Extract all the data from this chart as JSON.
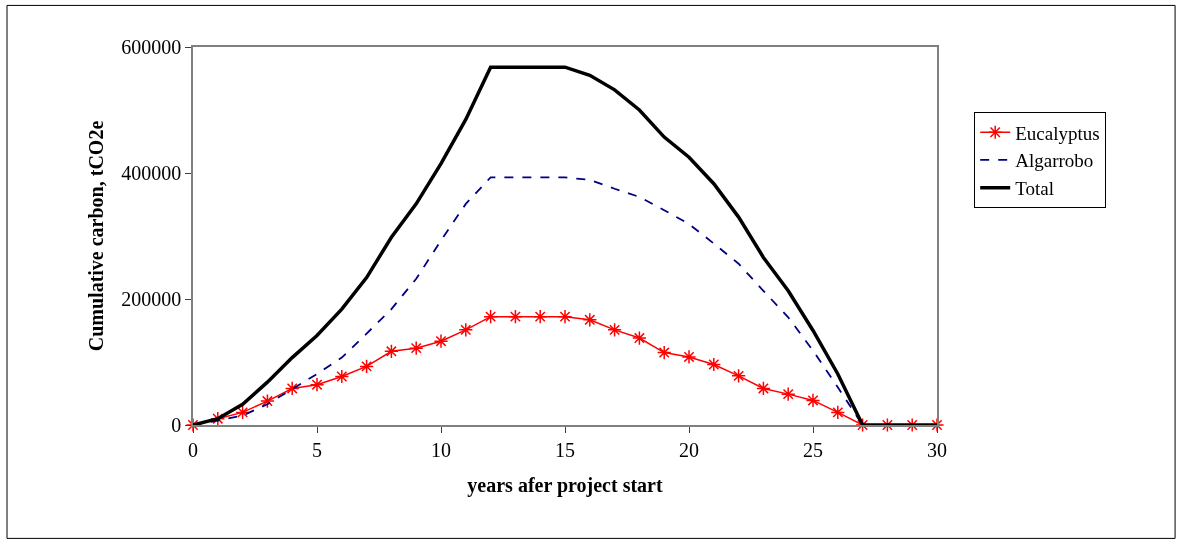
{
  "chart_data": {
    "type": "line",
    "xlabel": "years afer project start",
    "ylabel": "Cumulative carbon, tCO2e",
    "x": [
      0,
      1,
      2,
      3,
      4,
      5,
      6,
      7,
      8,
      9,
      10,
      11,
      12,
      13,
      14,
      15,
      16,
      17,
      18,
      19,
      20,
      21,
      22,
      23,
      24,
      25,
      26,
      27,
      28,
      29,
      30
    ],
    "series": [
      {
        "name": "Eucalyptus",
        "color": "#ff0000",
        "marker": "cross",
        "line_style": "solid",
        "values": [
          0,
          10000,
          20000,
          38000,
          58000,
          64000,
          77000,
          93000,
          117000,
          122000,
          133000,
          151000,
          172000,
          172000,
          172000,
          172000,
          167000,
          151000,
          138000,
          115000,
          108000,
          96000,
          78000,
          58000,
          49000,
          39000,
          20000,
          0,
          0,
          0,
          0
        ]
      },
      {
        "name": "Algarrobo",
        "color": "#000080",
        "marker": "none",
        "line_style": "dashed",
        "values": [
          0,
          7000,
          15000,
          33000,
          57000,
          81000,
          107000,
          145000,
          184000,
          232000,
          293000,
          351000,
          393000,
          393000,
          393000,
          393000,
          389000,
          375000,
          362000,
          341000,
          319000,
          288000,
          256000,
          213000,
          171000,
          118000,
          60000,
          0,
          null,
          null,
          null
        ]
      },
      {
        "name": "Total",
        "color": "#000000",
        "marker": "none",
        "line_style": "solid",
        "values": [
          0,
          10000,
          33000,
          68000,
          107000,
          142000,
          184000,
          234000,
          298000,
          351000,
          415000,
          485000,
          568000,
          568000,
          568000,
          568000,
          555000,
          532000,
          500000,
          457000,
          425000,
          383000,
          330000,
          266000,
          213000,
          150000,
          81000,
          0,
          0,
          0,
          0
        ]
      }
    ],
    "xlim": [
      0,
      30
    ],
    "xticks": [
      0,
      5,
      10,
      15,
      20,
      25,
      30
    ],
    "ylim": [
      0,
      600000
    ],
    "yticks": [
      0,
      200000,
      400000,
      600000
    ],
    "legend": "right"
  }
}
